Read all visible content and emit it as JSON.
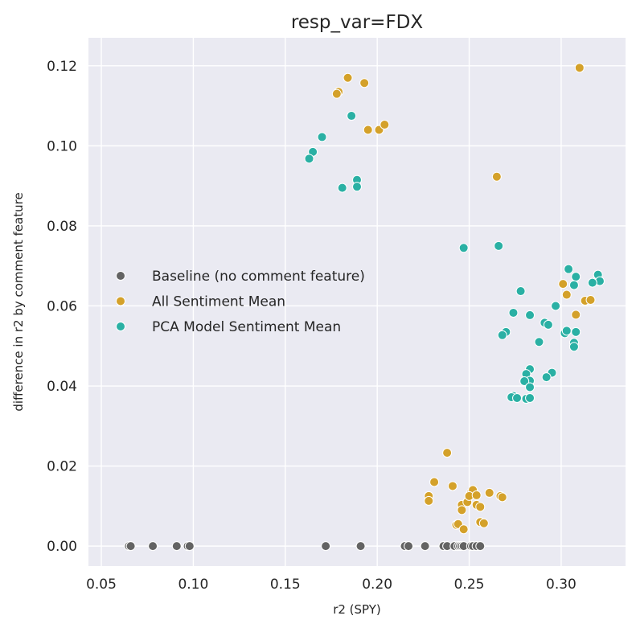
{
  "chart_data": {
    "type": "scatter",
    "title": "resp_var=FDX",
    "xlabel": "r2 (SPY)",
    "ylabel": "difference in r2 by comment feature",
    "xlim": [
      0.043,
      0.335
    ],
    "ylim": [
      -0.005,
      0.127
    ],
    "xticks": [
      0.05,
      0.1,
      0.15,
      0.2,
      0.25,
      0.3
    ],
    "xtick_labels": [
      "0.05",
      "0.10",
      "0.15",
      "0.20",
      "0.25",
      "0.30"
    ],
    "yticks": [
      0.0,
      0.02,
      0.04,
      0.06,
      0.08,
      0.1,
      0.12
    ],
    "ytick_labels": [
      "0.00",
      "0.02",
      "0.04",
      "0.06",
      "0.08",
      "0.10",
      "0.12"
    ],
    "grid": true,
    "legend_position": "center-left",
    "series": [
      {
        "name": "Baseline (no comment feature)",
        "color": "#636363",
        "points": [
          [
            0.065,
            0.0
          ],
          [
            0.066,
            0.0
          ],
          [
            0.078,
            0.0
          ],
          [
            0.091,
            0.0
          ],
          [
            0.097,
            0.0
          ],
          [
            0.098,
            0.0
          ],
          [
            0.172,
            0.0
          ],
          [
            0.191,
            0.0
          ],
          [
            0.215,
            0.0
          ],
          [
            0.217,
            0.0
          ],
          [
            0.226,
            0.0
          ],
          [
            0.236,
            0.0
          ],
          [
            0.238,
            0.0
          ],
          [
            0.242,
            0.0
          ],
          [
            0.244,
            0.0
          ],
          [
            0.245,
            0.0
          ],
          [
            0.246,
            0.0
          ],
          [
            0.247,
            0.0
          ],
          [
            0.251,
            0.0
          ],
          [
            0.252,
            0.0
          ],
          [
            0.254,
            0.0
          ],
          [
            0.256,
            0.0
          ]
        ]
      },
      {
        "name": "All Sentiment Mean",
        "color": "#d4a12a",
        "points": [
          [
            0.179,
            0.1135
          ],
          [
            0.178,
            0.113
          ],
          [
            0.184,
            0.117
          ],
          [
            0.193,
            0.1157
          ],
          [
            0.195,
            0.104
          ],
          [
            0.201,
            0.104
          ],
          [
            0.204,
            0.1053
          ],
          [
            0.31,
            0.1195
          ],
          [
            0.265,
            0.0923
          ],
          [
            0.301,
            0.0655
          ],
          [
            0.303,
            0.0628
          ],
          [
            0.308,
            0.0578
          ],
          [
            0.313,
            0.0613
          ],
          [
            0.316,
            0.0615
          ],
          [
            0.238,
            0.0233
          ],
          [
            0.231,
            0.016
          ],
          [
            0.241,
            0.015
          ],
          [
            0.228,
            0.0125
          ],
          [
            0.228,
            0.0113
          ],
          [
            0.246,
            0.0103
          ],
          [
            0.249,
            0.011
          ],
          [
            0.251,
            0.0133
          ],
          [
            0.252,
            0.014
          ],
          [
            0.25,
            0.0125
          ],
          [
            0.254,
            0.0127
          ],
          [
            0.254,
            0.0103
          ],
          [
            0.256,
            0.0098
          ],
          [
            0.246,
            0.009
          ],
          [
            0.261,
            0.0133
          ],
          [
            0.267,
            0.0125
          ],
          [
            0.268,
            0.0122
          ],
          [
            0.243,
            0.0053
          ],
          [
            0.244,
            0.0055
          ],
          [
            0.256,
            0.006
          ],
          [
            0.258,
            0.0057
          ],
          [
            0.247,
            0.0042
          ]
        ]
      },
      {
        "name": "PCA Model Sentiment Mean",
        "color": "#2ab0a4",
        "points": [
          [
            0.17,
            0.1022
          ],
          [
            0.165,
            0.0985
          ],
          [
            0.163,
            0.0968
          ],
          [
            0.186,
            0.1075
          ],
          [
            0.189,
            0.0915
          ],
          [
            0.189,
            0.0898
          ],
          [
            0.181,
            0.0895
          ],
          [
            0.247,
            0.0745
          ],
          [
            0.266,
            0.075
          ],
          [
            0.304,
            0.0692
          ],
          [
            0.308,
            0.0673
          ],
          [
            0.32,
            0.0678
          ],
          [
            0.321,
            0.0662
          ],
          [
            0.317,
            0.0658
          ],
          [
            0.307,
            0.0652
          ],
          [
            0.278,
            0.0637
          ],
          [
            0.297,
            0.06
          ],
          [
            0.274,
            0.0583
          ],
          [
            0.283,
            0.0577
          ],
          [
            0.291,
            0.0558
          ],
          [
            0.293,
            0.0553
          ],
          [
            0.302,
            0.0532
          ],
          [
            0.303,
            0.0538
          ],
          [
            0.308,
            0.0535
          ],
          [
            0.27,
            0.0535
          ],
          [
            0.268,
            0.0527
          ],
          [
            0.307,
            0.0508
          ],
          [
            0.307,
            0.0498
          ],
          [
            0.288,
            0.051
          ],
          [
            0.283,
            0.0442
          ],
          [
            0.281,
            0.043
          ],
          [
            0.295,
            0.0433
          ],
          [
            0.292,
            0.0422
          ],
          [
            0.283,
            0.0413
          ],
          [
            0.28,
            0.0412
          ],
          [
            0.283,
            0.0397
          ],
          [
            0.274,
            0.0375
          ],
          [
            0.273,
            0.0372
          ],
          [
            0.276,
            0.037
          ],
          [
            0.281,
            0.0368
          ],
          [
            0.283,
            0.037
          ]
        ]
      }
    ]
  }
}
